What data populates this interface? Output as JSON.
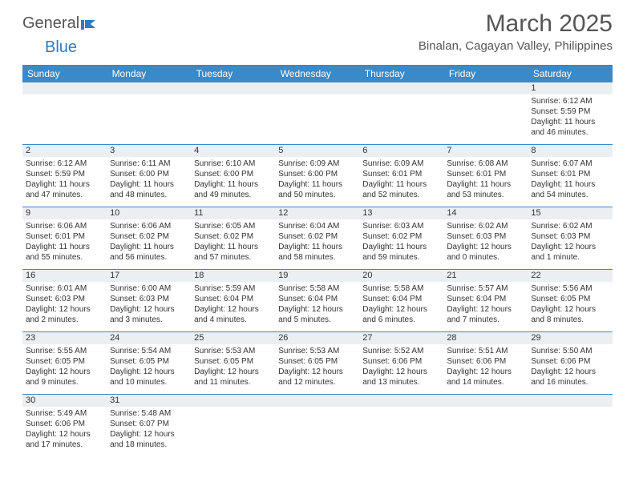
{
  "logo": {
    "general": "General",
    "blue": "Blue"
  },
  "title": "March 2025",
  "location": "Binalan, Cagayan Valley, Philippines",
  "colors": {
    "header_bg": "#3a89c9",
    "header_text": "#ffffff",
    "daynum_bg": "#eceff1",
    "border": "#3a89c9",
    "body_text": "#333333",
    "title_text": "#555555"
  },
  "weekdays": [
    "Sunday",
    "Monday",
    "Tuesday",
    "Wednesday",
    "Thursday",
    "Friday",
    "Saturday"
  ],
  "weeks": [
    [
      null,
      null,
      null,
      null,
      null,
      null,
      {
        "n": "1",
        "sr": "Sunrise: 6:12 AM",
        "ss": "Sunset: 5:59 PM",
        "dl": "Daylight: 11 hours and 46 minutes."
      }
    ],
    [
      {
        "n": "2",
        "sr": "Sunrise: 6:12 AM",
        "ss": "Sunset: 5:59 PM",
        "dl": "Daylight: 11 hours and 47 minutes."
      },
      {
        "n": "3",
        "sr": "Sunrise: 6:11 AM",
        "ss": "Sunset: 6:00 PM",
        "dl": "Daylight: 11 hours and 48 minutes."
      },
      {
        "n": "4",
        "sr": "Sunrise: 6:10 AM",
        "ss": "Sunset: 6:00 PM",
        "dl": "Daylight: 11 hours and 49 minutes."
      },
      {
        "n": "5",
        "sr": "Sunrise: 6:09 AM",
        "ss": "Sunset: 6:00 PM",
        "dl": "Daylight: 11 hours and 50 minutes."
      },
      {
        "n": "6",
        "sr": "Sunrise: 6:09 AM",
        "ss": "Sunset: 6:01 PM",
        "dl": "Daylight: 11 hours and 52 minutes."
      },
      {
        "n": "7",
        "sr": "Sunrise: 6:08 AM",
        "ss": "Sunset: 6:01 PM",
        "dl": "Daylight: 11 hours and 53 minutes."
      },
      {
        "n": "8",
        "sr": "Sunrise: 6:07 AM",
        "ss": "Sunset: 6:01 PM",
        "dl": "Daylight: 11 hours and 54 minutes."
      }
    ],
    [
      {
        "n": "9",
        "sr": "Sunrise: 6:06 AM",
        "ss": "Sunset: 6:01 PM",
        "dl": "Daylight: 11 hours and 55 minutes."
      },
      {
        "n": "10",
        "sr": "Sunrise: 6:06 AM",
        "ss": "Sunset: 6:02 PM",
        "dl": "Daylight: 11 hours and 56 minutes."
      },
      {
        "n": "11",
        "sr": "Sunrise: 6:05 AM",
        "ss": "Sunset: 6:02 PM",
        "dl": "Daylight: 11 hours and 57 minutes."
      },
      {
        "n": "12",
        "sr": "Sunrise: 6:04 AM",
        "ss": "Sunset: 6:02 PM",
        "dl": "Daylight: 11 hours and 58 minutes."
      },
      {
        "n": "13",
        "sr": "Sunrise: 6:03 AM",
        "ss": "Sunset: 6:02 PM",
        "dl": "Daylight: 11 hours and 59 minutes."
      },
      {
        "n": "14",
        "sr": "Sunrise: 6:02 AM",
        "ss": "Sunset: 6:03 PM",
        "dl": "Daylight: 12 hours and 0 minutes."
      },
      {
        "n": "15",
        "sr": "Sunrise: 6:02 AM",
        "ss": "Sunset: 6:03 PM",
        "dl": "Daylight: 12 hours and 1 minute."
      }
    ],
    [
      {
        "n": "16",
        "sr": "Sunrise: 6:01 AM",
        "ss": "Sunset: 6:03 PM",
        "dl": "Daylight: 12 hours and 2 minutes."
      },
      {
        "n": "17",
        "sr": "Sunrise: 6:00 AM",
        "ss": "Sunset: 6:03 PM",
        "dl": "Daylight: 12 hours and 3 minutes."
      },
      {
        "n": "18",
        "sr": "Sunrise: 5:59 AM",
        "ss": "Sunset: 6:04 PM",
        "dl": "Daylight: 12 hours and 4 minutes."
      },
      {
        "n": "19",
        "sr": "Sunrise: 5:58 AM",
        "ss": "Sunset: 6:04 PM",
        "dl": "Daylight: 12 hours and 5 minutes."
      },
      {
        "n": "20",
        "sr": "Sunrise: 5:58 AM",
        "ss": "Sunset: 6:04 PM",
        "dl": "Daylight: 12 hours and 6 minutes."
      },
      {
        "n": "21",
        "sr": "Sunrise: 5:57 AM",
        "ss": "Sunset: 6:04 PM",
        "dl": "Daylight: 12 hours and 7 minutes."
      },
      {
        "n": "22",
        "sr": "Sunrise: 5:56 AM",
        "ss": "Sunset: 6:05 PM",
        "dl": "Daylight: 12 hours and 8 minutes."
      }
    ],
    [
      {
        "n": "23",
        "sr": "Sunrise: 5:55 AM",
        "ss": "Sunset: 6:05 PM",
        "dl": "Daylight: 12 hours and 9 minutes."
      },
      {
        "n": "24",
        "sr": "Sunrise: 5:54 AM",
        "ss": "Sunset: 6:05 PM",
        "dl": "Daylight: 12 hours and 10 minutes."
      },
      {
        "n": "25",
        "sr": "Sunrise: 5:53 AM",
        "ss": "Sunset: 6:05 PM",
        "dl": "Daylight: 12 hours and 11 minutes."
      },
      {
        "n": "26",
        "sr": "Sunrise: 5:53 AM",
        "ss": "Sunset: 6:05 PM",
        "dl": "Daylight: 12 hours and 12 minutes."
      },
      {
        "n": "27",
        "sr": "Sunrise: 5:52 AM",
        "ss": "Sunset: 6:06 PM",
        "dl": "Daylight: 12 hours and 13 minutes."
      },
      {
        "n": "28",
        "sr": "Sunrise: 5:51 AM",
        "ss": "Sunset: 6:06 PM",
        "dl": "Daylight: 12 hours and 14 minutes."
      },
      {
        "n": "29",
        "sr": "Sunrise: 5:50 AM",
        "ss": "Sunset: 6:06 PM",
        "dl": "Daylight: 12 hours and 16 minutes."
      }
    ],
    [
      {
        "n": "30",
        "sr": "Sunrise: 5:49 AM",
        "ss": "Sunset: 6:06 PM",
        "dl": "Daylight: 12 hours and 17 minutes."
      },
      {
        "n": "31",
        "sr": "Sunrise: 5:48 AM",
        "ss": "Sunset: 6:07 PM",
        "dl": "Daylight: 12 hours and 18 minutes."
      },
      null,
      null,
      null,
      null,
      null
    ]
  ]
}
